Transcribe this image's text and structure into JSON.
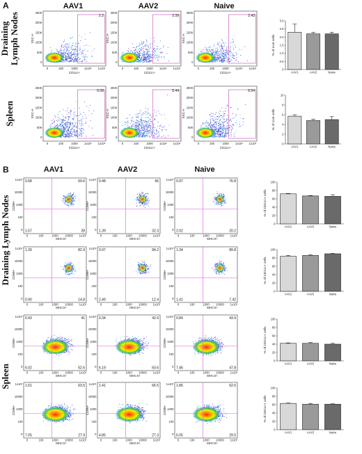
{
  "figure": {
    "panelA": {
      "letter": "A",
      "columns": [
        "AAV1",
        "AAV2",
        "Naive"
      ],
      "rows": [
        {
          "label_lines": [
            "Draining",
            "Lymph Nodes"
          ],
          "percents": [
            "2.2",
            "2.39",
            "2.43"
          ],
          "bar": {
            "ylabel": "% of Live cells",
            "yticks": [
              "0",
              "0.5",
              "1.0",
              "1.5",
              "2.0",
              "2.5",
              "3.0"
            ]
          }
        },
        {
          "label_lines": [
            "Spleen"
          ],
          "percents": [
            "6.08",
            "5.44",
            "6.54"
          ],
          "bar": {
            "ylabel": "% of Live cells",
            "yticks": [
              "0",
              "2",
              "4",
              "6",
              "8",
              "10"
            ]
          }
        }
      ],
      "ylabel": "SSC-A",
      "xlabel": "CD11c+",
      "yticks": [
        "250K",
        "200K",
        "150K",
        "100K",
        "50K",
        "0"
      ],
      "xticks": [
        "0",
        "100",
        "1000",
        "1x10⁴",
        "1x10⁵"
      ]
    },
    "panelB": {
      "letter": "B",
      "columns": [
        "AAV1",
        "AAV2",
        "Naive"
      ],
      "ylabel": "CD86+",
      "xlabel": "MHCII+",
      "yticks": [
        "1x10⁵",
        "10000",
        "1000",
        "100",
        "0"
      ],
      "xticks": [
        "0",
        "100",
        "1000",
        "10000",
        "1x10⁵"
      ],
      "group_labels": [
        "Draining Lymph Nodes",
        "Spleen"
      ],
      "rows": [
        {
          "quads": [
            [
              "0.68",
              "69.6",
              "1.67",
              "28"
            ],
            [
              "0.48",
              "66",
              "1.39",
              "32.3"
            ],
            [
              "0.97",
              "76.8",
              "2.02",
              "20.2"
            ]
          ]
        },
        {
          "quads": [
            [
              "1.39",
              "82.9",
              "0.90",
              "14.8"
            ],
            [
              "0.97",
              "84.2",
              "2.49",
              "12.4"
            ],
            [
              "1.34",
              "89.8",
              "1.41",
              "7.42"
            ]
          ]
        },
        {
          "quads": [
            [
              "0.43",
              "41",
              "6.02",
              "52.6"
            ],
            [
              "0.34",
              "42.9",
              "6.19",
              "50.6"
            ],
            [
              "0.84",
              "43.9",
              "7.46",
              "47.8"
            ]
          ]
        },
        {
          "quads": [
            [
              "1.61",
              "63.5",
              "7.05",
              "27.9"
            ],
            [
              "1.41",
              "66.5",
              "4.85",
              "27.3"
            ],
            [
              "1.86",
              "62.6",
              "6.05",
              "29.5"
            ]
          ]
        }
      ],
      "bar_ylabel": "% of CD11c+ cells",
      "bar_yticks": [
        "0",
        "20",
        "40",
        "60",
        "80",
        "100"
      ]
    }
  },
  "chart_data": [
    {
      "type": "bar",
      "categories": [
        "AAV1",
        "AAV2",
        "Naive"
      ],
      "values": [
        2.3,
        2.2,
        2.2
      ],
      "errors": [
        0.5,
        0.1,
        0.1
      ],
      "ylabel": "% of Live cells",
      "ylim": [
        0,
        3
      ]
    },
    {
      "type": "bar",
      "categories": [
        "AAV1",
        "AAV2",
        "Naive"
      ],
      "values": [
        5.7,
        4.8,
        5.0
      ],
      "errors": [
        0.3,
        0.3,
        0.6
      ],
      "ylabel": "% of Live cells",
      "ylim": [
        0,
        10
      ]
    },
    {
      "type": "bar",
      "categories": [
        "AAV1",
        "AAV2",
        "Naive"
      ],
      "values": [
        72,
        67,
        66
      ],
      "errors": [
        1,
        1,
        4
      ],
      "ylabel": "% of CD11c+ cells",
      "ylim": [
        0,
        100
      ]
    },
    {
      "type": "bar",
      "categories": [
        "AAV1",
        "AAV2",
        "Naive"
      ],
      "values": [
        84,
        86,
        90
      ],
      "errors": [
        2,
        2,
        1
      ],
      "ylabel": "% of CD11c+ cells",
      "ylim": [
        0,
        100
      ]
    },
    {
      "type": "bar",
      "categories": [
        "AAV1",
        "AAV2",
        "Naive"
      ],
      "values": [
        42,
        42,
        40
      ],
      "errors": [
        1,
        2,
        2
      ],
      "ylabel": "% of CD11c+ cells",
      "ylim": [
        0,
        100
      ]
    },
    {
      "type": "bar",
      "categories": [
        "AAV1",
        "AAV2",
        "Naive"
      ],
      "values": [
        63,
        61,
        61
      ],
      "errors": [
        1,
        2,
        1
      ],
      "ylabel": "% of CD11c+ cells",
      "ylim": [
        0,
        100
      ]
    }
  ],
  "colors": {
    "gate": "#d060c0",
    "quadline": "#e070e0",
    "bar_fills": [
      "#d8d8d8",
      "#9a9a9a",
      "#6a6a6a"
    ]
  }
}
